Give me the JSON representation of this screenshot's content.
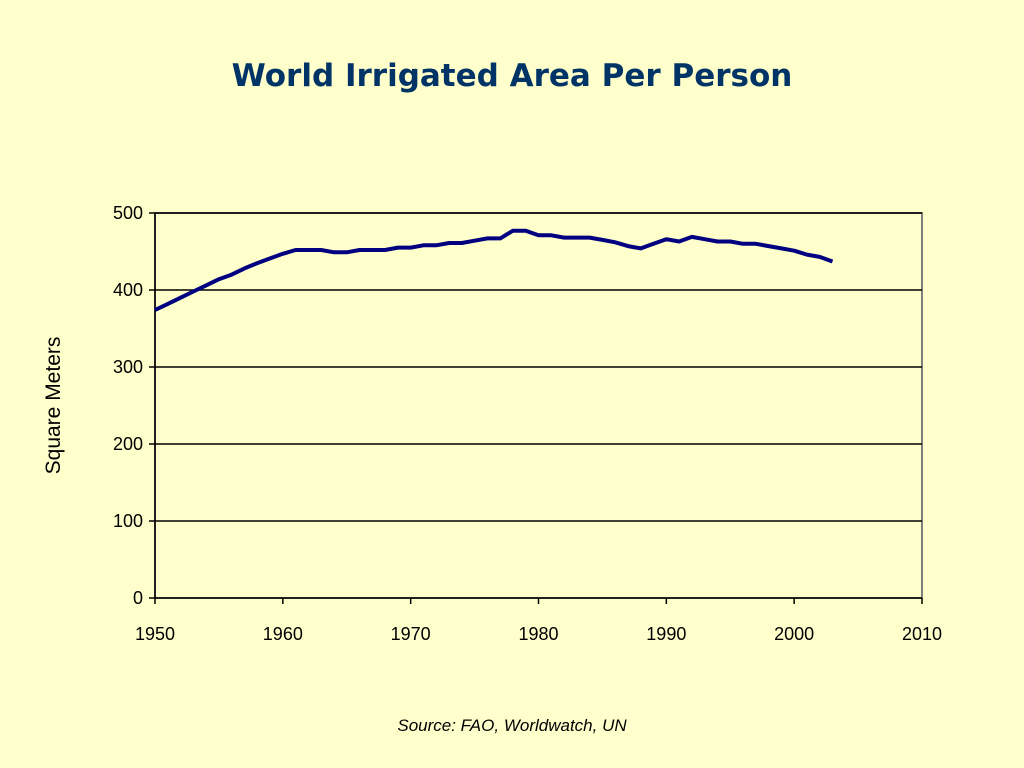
{
  "slide": {
    "title": "World Irrigated Area Per Person",
    "source": "Source: FAO, Worldwatch, UN",
    "background_color": "#ffffcc",
    "title_color": "#003366"
  },
  "chart_data": {
    "type": "line",
    "title": "World Irrigated Area Per Person",
    "xlabel": "",
    "ylabel": "Square Meters",
    "xlim": [
      1950,
      2010
    ],
    "ylim": [
      0,
      500
    ],
    "x_ticks": [
      1950,
      1960,
      1970,
      1980,
      1990,
      2000,
      2010
    ],
    "y_ticks": [
      0,
      100,
      200,
      300,
      400,
      500
    ],
    "grid": "horizontal",
    "legend": "none",
    "line_color": "#000080",
    "series": [
      {
        "x": [
          1950,
          1951,
          1952,
          1953,
          1954,
          1955,
          1956,
          1957,
          1958,
          1959,
          1960,
          1961,
          1962,
          1963,
          1964,
          1965,
          1966,
          1967,
          1968,
          1969,
          1970,
          1971,
          1972,
          1973,
          1974,
          1975,
          1976,
          1977,
          1978,
          1979,
          1980,
          1981,
          1982,
          1983,
          1984,
          1985,
          1986,
          1987,
          1988,
          1989,
          1990,
          1991,
          1992,
          1993,
          1994,
          1995,
          1996,
          1997,
          1998,
          1999,
          2000,
          2001,
          2002,
          2003
        ],
        "values": [
          374,
          382,
          390,
          398,
          406,
          414,
          420,
          428,
          435,
          441,
          447,
          452,
          452,
          452,
          449,
          449,
          452,
          452,
          452,
          455,
          455,
          458,
          458,
          461,
          461,
          464,
          467,
          467,
          477,
          477,
          471,
          471,
          468,
          468,
          468,
          465,
          462,
          457,
          454,
          460,
          466,
          463,
          469,
          466,
          463,
          463,
          460,
          460,
          457,
          454,
          451,
          446,
          443,
          437
        ]
      }
    ]
  }
}
